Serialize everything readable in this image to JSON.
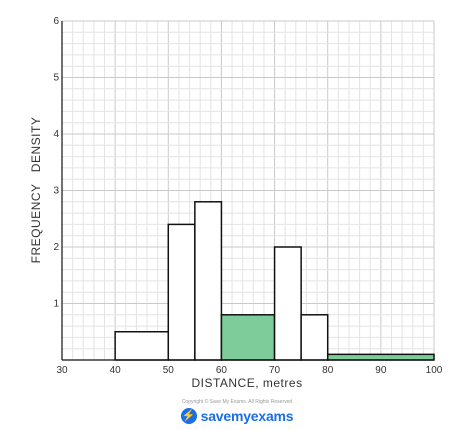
{
  "chart_data": {
    "type": "bar",
    "subtype": "histogram",
    "title": "",
    "xlabel": "DISTANCE, metres",
    "ylabel": "FREQUENCY   DENSITY",
    "xlim": [
      30,
      100
    ],
    "ylim": [
      0,
      6
    ],
    "x_ticks": [
      30,
      40,
      50,
      60,
      70,
      80,
      90,
      100
    ],
    "y_ticks": [
      1,
      2,
      3,
      4,
      5,
      6
    ],
    "grid": true,
    "legend": "none",
    "bars": [
      {
        "x0": 40,
        "x1": 50,
        "value": 0.5,
        "highlight": false
      },
      {
        "x0": 50,
        "x1": 55,
        "value": 2.4,
        "highlight": false
      },
      {
        "x0": 55,
        "x1": 60,
        "value": 2.8,
        "highlight": false
      },
      {
        "x0": 60,
        "x1": 70,
        "value": 0.8,
        "highlight": true
      },
      {
        "x0": 70,
        "x1": 75,
        "value": 2.0,
        "highlight": false
      },
      {
        "x0": 75,
        "x1": 80,
        "value": 0.8,
        "highlight": false
      },
      {
        "x0": 80,
        "x1": 100,
        "value": 0.1,
        "highlight": true
      }
    ],
    "colors": {
      "highlight_fill": "#7dcc99",
      "bar_fill": "#ffffff",
      "bar_stroke": "#111111",
      "grid_minor": "#e4e4e4",
      "grid_major": "#c9c9c9"
    }
  },
  "footer": {
    "copyright": "Copyright © Save My Exams. All Rights Reserved",
    "brand": "savemyexams",
    "brand_icon": "lightning-bolt-icon"
  }
}
